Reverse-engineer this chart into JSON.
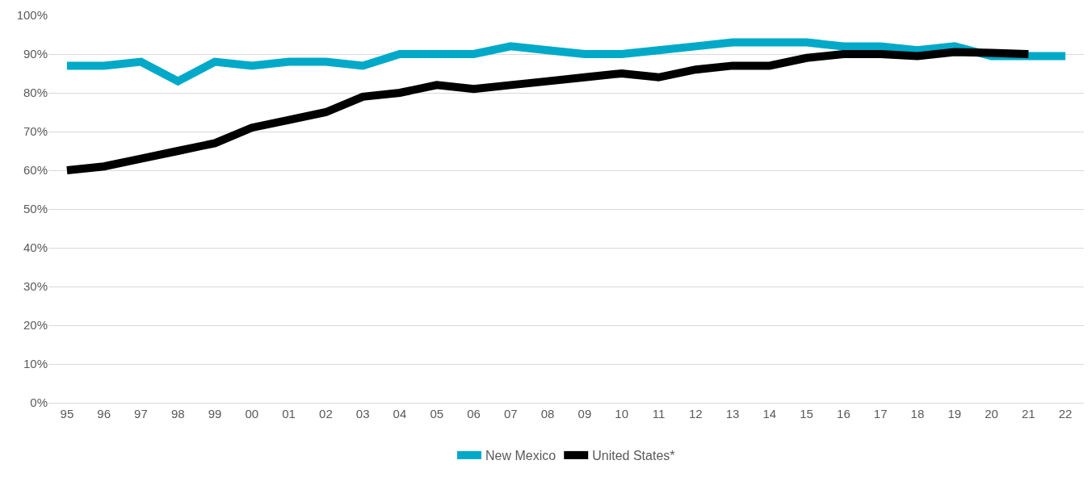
{
  "chart_data": {
    "type": "line",
    "categories": [
      "95",
      "96",
      "97",
      "98",
      "99",
      "00",
      "01",
      "02",
      "03",
      "04",
      "05",
      "06",
      "07",
      "08",
      "09",
      "10",
      "11",
      "12",
      "13",
      "14",
      "15",
      "16",
      "17",
      "18",
      "19",
      "20",
      "21",
      "22"
    ],
    "series": [
      {
        "name": "New Mexico",
        "color": "#00a9c8",
        "values": [
          87,
          87,
          88,
          83,
          88,
          87,
          88,
          88,
          87,
          90,
          90,
          90,
          92,
          91,
          90,
          90,
          91,
          92,
          93,
          93,
          93,
          92,
          92,
          91,
          92,
          89.5,
          89.5,
          89.5
        ]
      },
      {
        "name": "United States*",
        "color": "#000000",
        "values": [
          60,
          61,
          63,
          65,
          67,
          71,
          73,
          75,
          79,
          80,
          82,
          81,
          82,
          83,
          84,
          85,
          84,
          86,
          87,
          87,
          89,
          90,
          90,
          89.5,
          90.5,
          90.3,
          90,
          null
        ]
      }
    ],
    "ylim": [
      0,
      100
    ],
    "yticks": [
      {
        "value": 0,
        "label": "0%"
      },
      {
        "value": 10,
        "label": "10%"
      },
      {
        "value": 20,
        "label": "20%"
      },
      {
        "value": 30,
        "label": "30%"
      },
      {
        "value": 40,
        "label": "40%"
      },
      {
        "value": 50,
        "label": "50%"
      },
      {
        "value": 60,
        "label": "60%"
      },
      {
        "value": 70,
        "label": "70%"
      },
      {
        "value": 80,
        "label": "80%"
      },
      {
        "value": 90,
        "label": "90%"
      },
      {
        "value": 100,
        "label": "100%"
      }
    ],
    "grid": "y",
    "legend": "bottom",
    "marker": "none",
    "line_style": "solid"
  }
}
